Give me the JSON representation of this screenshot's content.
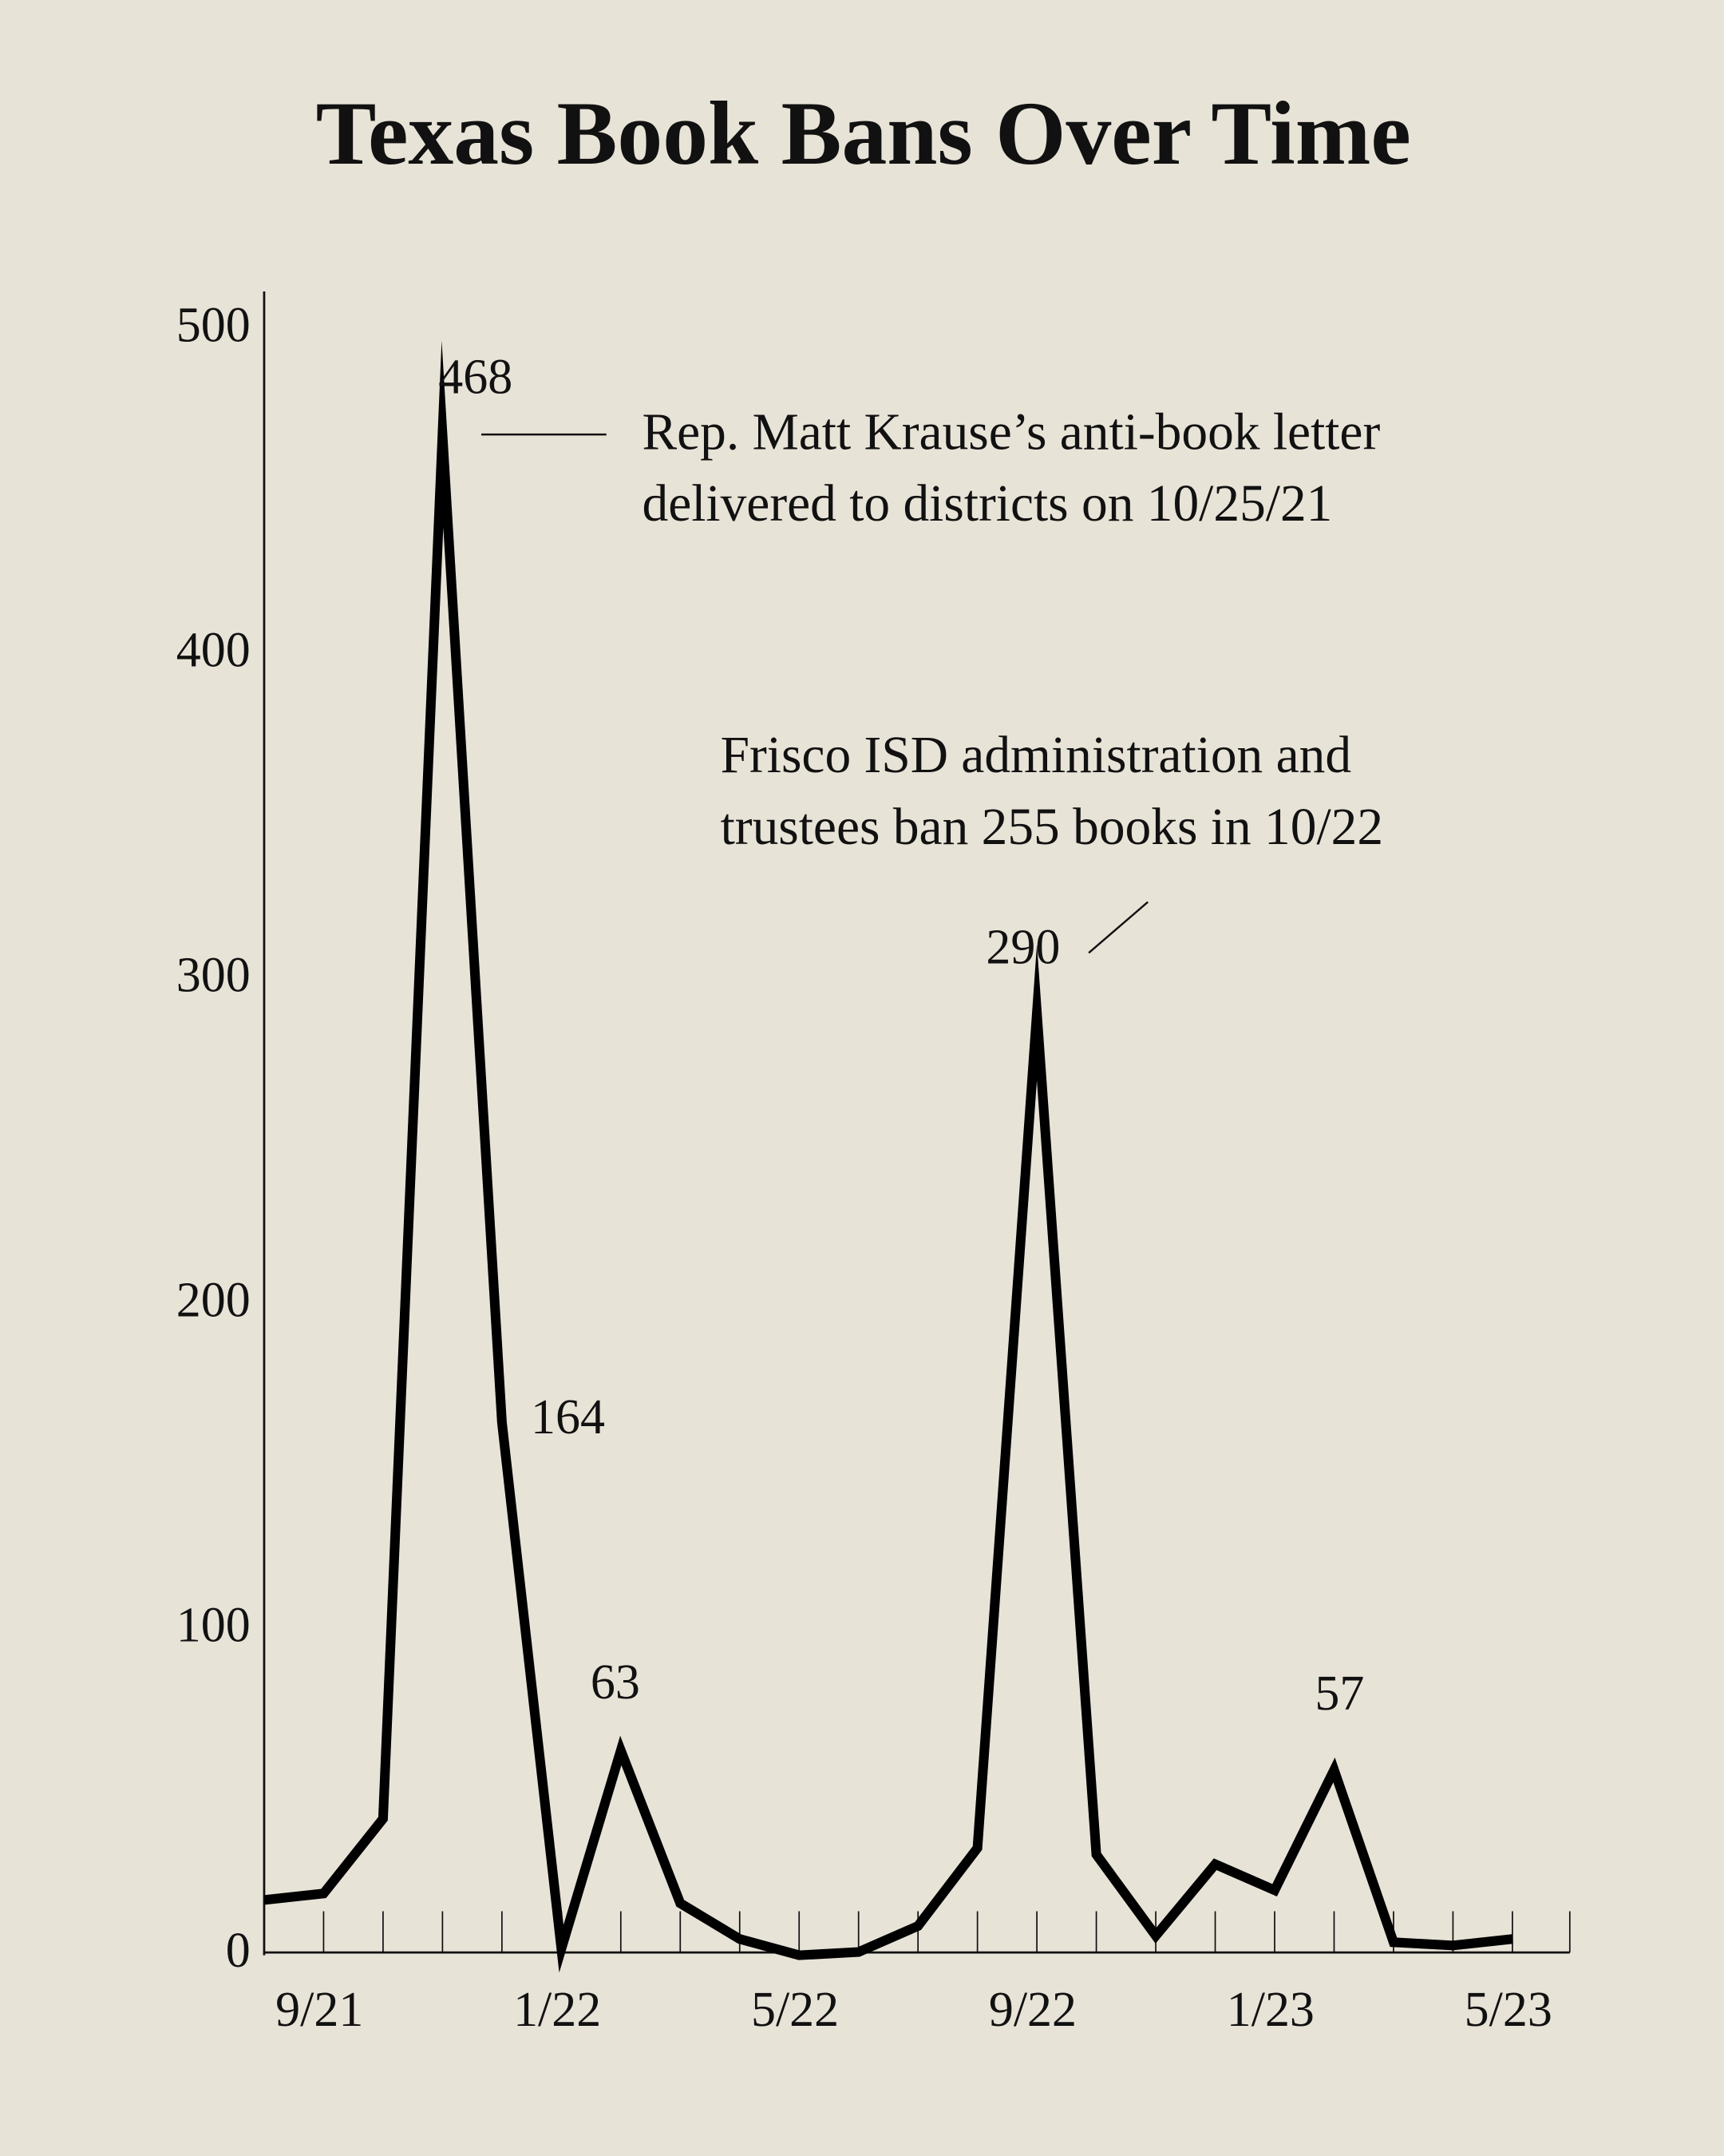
{
  "chart_data": {
    "type": "line",
    "title": "Texas Book Bans Over Time",
    "categories": [
      null,
      "9/21",
      null,
      null,
      null,
      "1/22",
      null,
      null,
      null,
      "5/22",
      null,
      null,
      null,
      "9/22",
      null,
      null,
      null,
      "1/23",
      null,
      null,
      null,
      "5/23"
    ],
    "series": [
      {
        "color": "#000000",
        "values": [
          17,
          19,
          42,
          468,
          164,
          2,
          63,
          16,
          5,
          0,
          1,
          9,
          33,
          290,
          31,
          6,
          28,
          20,
          57,
          4,
          3,
          5
        ],
        "value_labels": [
          null,
          null,
          null,
          "468",
          "164",
          null,
          "63",
          null,
          null,
          null,
          null,
          null,
          null,
          "290",
          null,
          null,
          null,
          null,
          "57",
          null,
          null,
          null
        ]
      }
    ],
    "ylim": [
      0,
      500
    ],
    "yticks": [
      0,
      100,
      200,
      300,
      400,
      500
    ],
    "annotations": [
      {
        "lines": [
          "Rep. Matt Krause’s anti-book letter",
          "delivered to districts on 10/25/21"
        ]
      },
      {
        "lines": [
          "Frisco ISD administration and",
          "trustees ban 255 books in 10/22"
        ]
      }
    ]
  }
}
